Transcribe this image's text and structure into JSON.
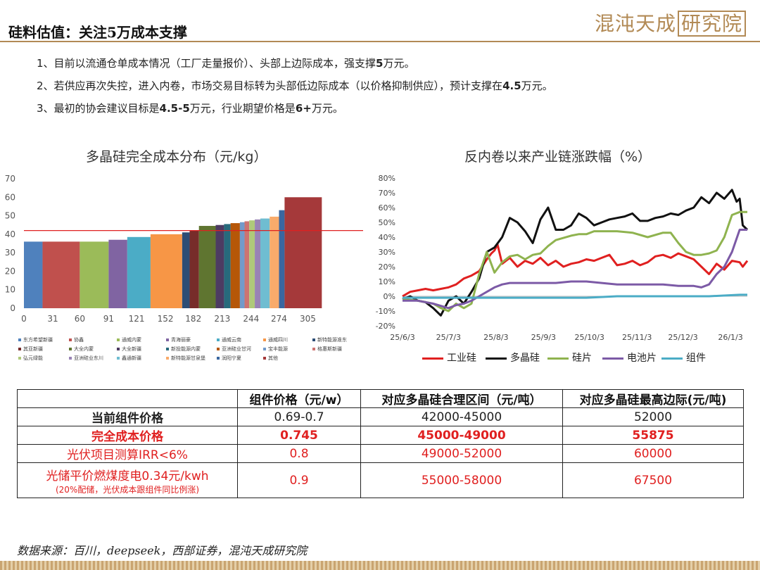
{
  "header": {
    "title": "硅料估值：关注5万成本支撑",
    "logo_text": "混沌天成",
    "logo_box_text": "研究院"
  },
  "bullets": [
    {
      "plain": "1、目前以流通仓单成本情况（工厂走量报价）、头部上边际成本，强支撑",
      "bold": "5",
      "tail": "万元。"
    },
    {
      "plain": "2、若供应再次失控，进入内卷，市场交易目标转为头部低边际成本（以价格抑制供应），预计支撑在",
      "bold": "4.5",
      "tail": "万元。"
    },
    {
      "plain": "3、最初的协会建议目标是",
      "bold": "4.5-5",
      "tail": "万元，行业期望价格是",
      "bold2": "6+",
      "tail2": "万元。"
    }
  ],
  "chart_data": [
    {
      "type": "bar",
      "title": "多晶硅完全成本分布（元/kg）",
      "x_ticks": [
        "0",
        "31",
        "60",
        "91",
        "121",
        "152",
        "182",
        "213",
        "244",
        "274",
        "305"
      ],
      "x_range": [
        0,
        350
      ],
      "ylim": [
        0,
        70
      ],
      "y_ticks": [
        0,
        10,
        20,
        30,
        40,
        50,
        60,
        70
      ],
      "reference_line": 42,
      "reference_color": "#e02020",
      "bars": [
        {
          "name": "东方希望新疆",
          "start": 0,
          "end": 20,
          "value": 36,
          "color": "#4f81bd"
        },
        {
          "name": "协鑫",
          "start": 20,
          "end": 60,
          "value": 36,
          "color": "#c0504d"
        },
        {
          "name": "通威内蒙",
          "start": 60,
          "end": 91,
          "value": 36,
          "color": "#9bbb59"
        },
        {
          "name": "大全内蒙",
          "start": 91,
          "end": 111,
          "value": 37,
          "color": "#8064a2"
        },
        {
          "name": "青海丽豪",
          "start": 111,
          "end": 136,
          "value": 38.5,
          "color": "#4bacc6"
        },
        {
          "name": "大全新疆",
          "start": 136,
          "end": 170,
          "value": 40,
          "color": "#f79646"
        },
        {
          "name": "新特能源新疆",
          "start": 170,
          "end": 178,
          "value": 41,
          "color": "#2c4d75"
        },
        {
          "name": "通威云南",
          "start": 178,
          "end": 188,
          "value": 42,
          "color": "#772c2a"
        },
        {
          "name": "新投能源内蒙",
          "start": 188,
          "end": 206,
          "value": 44.5,
          "color": "#5f7530"
        },
        {
          "name": "通威四川",
          "start": 206,
          "end": 215,
          "value": 45,
          "color": "#4d3b62"
        },
        {
          "name": "亚洲硅业甘河",
          "start": 215,
          "end": 222,
          "value": 45.5,
          "color": "#276a7c"
        },
        {
          "name": "新特能源准东",
          "start": 222,
          "end": 232,
          "value": 46,
          "color": "#b65708"
        },
        {
          "name": "宝丰能源",
          "start": 232,
          "end": 237,
          "value": 46.5,
          "color": "#729aca"
        },
        {
          "name": "其亚新疆",
          "start": 237,
          "end": 242,
          "value": 47,
          "color": "#cd7371"
        },
        {
          "name": "亚洲硅业东川",
          "start": 242,
          "end": 248,
          "value": 47.5,
          "color": "#afc97a"
        },
        {
          "name": "格惠斯新疆",
          "start": 248,
          "end": 254,
          "value": 48,
          "color": "#9983b5"
        },
        {
          "name": "鑫通新疆",
          "start": 254,
          "end": 264,
          "value": 48.5,
          "color": "#6fbdd1"
        },
        {
          "name": "新特能源甘泉堡",
          "start": 264,
          "end": 274,
          "value": 49.5,
          "color": "#f9ab6b"
        },
        {
          "name": "润阳宁夏",
          "start": 274,
          "end": 280,
          "value": 53,
          "color": "#3a67a0"
        },
        {
          "name": "其他",
          "start": 280,
          "end": 320,
          "value": 60,
          "color": "#a5393a"
        }
      ],
      "legend": [
        {
          "name": "东方希望新疆",
          "color": "#4f81bd"
        },
        {
          "name": "协鑫",
          "color": "#c0504d"
        },
        {
          "name": "通威内蒙",
          "color": "#9bbb59"
        },
        {
          "name": "青海丽豪",
          "color": "#8064a2"
        },
        {
          "name": "通威云南",
          "color": "#4bacc6"
        },
        {
          "name": "通威四川",
          "color": "#f79646"
        },
        {
          "name": "新特能源准东",
          "color": "#2c4d75"
        },
        {
          "name": "其亚新疆",
          "color": "#772c2a"
        },
        {
          "name": "大全内蒙",
          "color": "#5f7530"
        },
        {
          "name": "大全新疆",
          "color": "#4d3b62"
        },
        {
          "name": "新投能源内蒙",
          "color": "#276a7c"
        },
        {
          "name": "亚洲硅业甘河",
          "color": "#b65708"
        },
        {
          "name": "宝丰能源",
          "color": "#729aca"
        },
        {
          "name": "格惠斯新疆",
          "color": "#cd7371"
        },
        {
          "name": "弘元绿能",
          "color": "#afc97a"
        },
        {
          "name": "亚洲硅业东川",
          "color": "#9983b5"
        },
        {
          "name": "鑫通新疆",
          "color": "#6fbdd1"
        },
        {
          "name": "新特能源甘泉堡",
          "color": "#f9ab6b"
        },
        {
          "name": "润阳宁夏",
          "color": "#3a67a0"
        },
        {
          "name": "其他",
          "color": "#a5393a"
        }
      ]
    },
    {
      "type": "line",
      "title": "反内卷以来产业链涨跌幅（%）",
      "x_ticks": [
        "25/6/3",
        "25/7/3",
        "25/8/3",
        "25/9/3",
        "25/10/3",
        "25/11/3",
        "25/12/3",
        "26/1/3"
      ],
      "ylim": [
        -20,
        80
      ],
      "y_ticks": [
        "-20%",
        "-10%",
        "0%",
        "10%",
        "20%",
        "30%",
        "40%",
        "50%",
        "60%",
        "70%",
        "80%"
      ],
      "x_range": [
        0,
        225
      ],
      "series": [
        {
          "name": "工业硅",
          "color": "#e02020",
          "x": [
            0,
            5,
            10,
            15,
            20,
            25,
            30,
            35,
            40,
            45,
            50,
            55,
            58,
            60,
            62,
            65,
            70,
            75,
            80,
            85,
            90,
            95,
            100,
            105,
            110,
            115,
            120,
            125,
            130,
            135,
            140,
            145,
            150,
            155,
            160,
            165,
            170,
            175,
            180,
            185,
            190,
            195,
            200,
            205,
            210,
            215,
            220,
            222,
            225
          ],
          "y": [
            0,
            3,
            4,
            5,
            4,
            5,
            6,
            8,
            12,
            14,
            17,
            25,
            29,
            31,
            35,
            22,
            26,
            20,
            24,
            22,
            26,
            21,
            24,
            20,
            22,
            23,
            25,
            24,
            26,
            28,
            21,
            22,
            24,
            21,
            23,
            27,
            28,
            26,
            29,
            27,
            25,
            20,
            15,
            22,
            18,
            24,
            23,
            20,
            24
          ]
        },
        {
          "name": "多晶硅",
          "color": "#111111",
          "x": [
            0,
            5,
            10,
            15,
            20,
            25,
            30,
            35,
            40,
            45,
            50,
            55,
            60,
            65,
            70,
            75,
            80,
            85,
            90,
            95,
            100,
            105,
            110,
            115,
            120,
            125,
            130,
            135,
            140,
            145,
            150,
            155,
            160,
            165,
            170,
            175,
            180,
            185,
            190,
            195,
            200,
            205,
            210,
            215,
            218,
            220,
            222,
            225
          ],
          "y": [
            -2,
            0,
            -3,
            -4,
            -8,
            -13,
            -3,
            0,
            -5,
            3,
            12,
            30,
            33,
            40,
            53,
            50,
            44,
            36,
            52,
            60,
            45,
            45,
            48,
            56,
            53,
            48,
            50,
            52,
            53,
            54,
            56,
            51,
            51,
            53,
            54,
            56,
            55,
            58,
            60,
            67,
            63,
            70,
            66,
            72,
            64,
            66,
            48,
            45
          ]
        },
        {
          "name": "硅片",
          "color": "#8fb34f",
          "x": [
            0,
            10,
            20,
            25,
            30,
            35,
            40,
            45,
            50,
            55,
            60,
            65,
            70,
            75,
            80,
            85,
            90,
            95,
            100,
            110,
            115,
            120,
            125,
            130,
            140,
            150,
            160,
            170,
            175,
            180,
            185,
            190,
            195,
            200,
            205,
            210,
            215,
            220,
            225
          ],
          "y": [
            -2,
            -3,
            -5,
            -8,
            -10,
            -5,
            -8,
            -5,
            15,
            30,
            16,
            23,
            27,
            28,
            25,
            28,
            29,
            34,
            38,
            41,
            42,
            42,
            44,
            44,
            44,
            43,
            40,
            43,
            43,
            36,
            30,
            28,
            28,
            29,
            31,
            40,
            55,
            57,
            57
          ]
        },
        {
          "name": "电池片",
          "color": "#7c5aa6",
          "x": [
            0,
            10,
            20,
            30,
            35,
            40,
            45,
            50,
            55,
            60,
            65,
            70,
            80,
            90,
            100,
            110,
            120,
            130,
            140,
            150,
            160,
            170,
            180,
            190,
            195,
            200,
            205,
            210,
            215,
            220,
            225
          ],
          "y": [
            -3,
            -3,
            -5,
            -8,
            -6,
            -5,
            -3,
            0,
            3,
            6,
            8,
            9,
            9,
            9,
            9,
            10,
            10,
            9,
            8,
            8,
            8,
            8,
            7,
            7,
            6,
            8,
            15,
            20,
            30,
            45,
            45
          ]
        },
        {
          "name": "组件",
          "color": "#4bacc6",
          "x": [
            0,
            20,
            40,
            50,
            60,
            80,
            100,
            120,
            140,
            160,
            180,
            200,
            220,
            225
          ],
          "y": [
            -1,
            -1,
            -1,
            -1,
            -1,
            -1,
            -1,
            -1,
            0,
            0,
            0,
            0,
            1,
            1
          ]
        }
      ]
    }
  ],
  "table": {
    "headers": [
      "",
      "组件价格（元/w）",
      "对应多晶硅合理区间（元/吨）",
      "对应多晶硅最高边际(元/吨)"
    ],
    "rows": [
      {
        "label": "当前组件价格",
        "price": "0.69-0.7",
        "range": "42000-45000",
        "max": "52000"
      },
      {
        "label": "完全成本价格",
        "price": "0.745",
        "range": "45000-49000",
        "max": "55875"
      },
      {
        "label": "光伏项目测算IRR<6%",
        "price": "0.8",
        "range": "49000-52000",
        "max": "60000"
      },
      {
        "label": "光储平价燃煤度电0.34元/kwh",
        "sub": "(20%配储，光伏成本跟组件同比例涨)",
        "price": "0.9",
        "range": "55000-58000",
        "max": "67500"
      }
    ]
  },
  "source": "数据来源：百川，deepseek，西部证券，混沌天成研究院"
}
